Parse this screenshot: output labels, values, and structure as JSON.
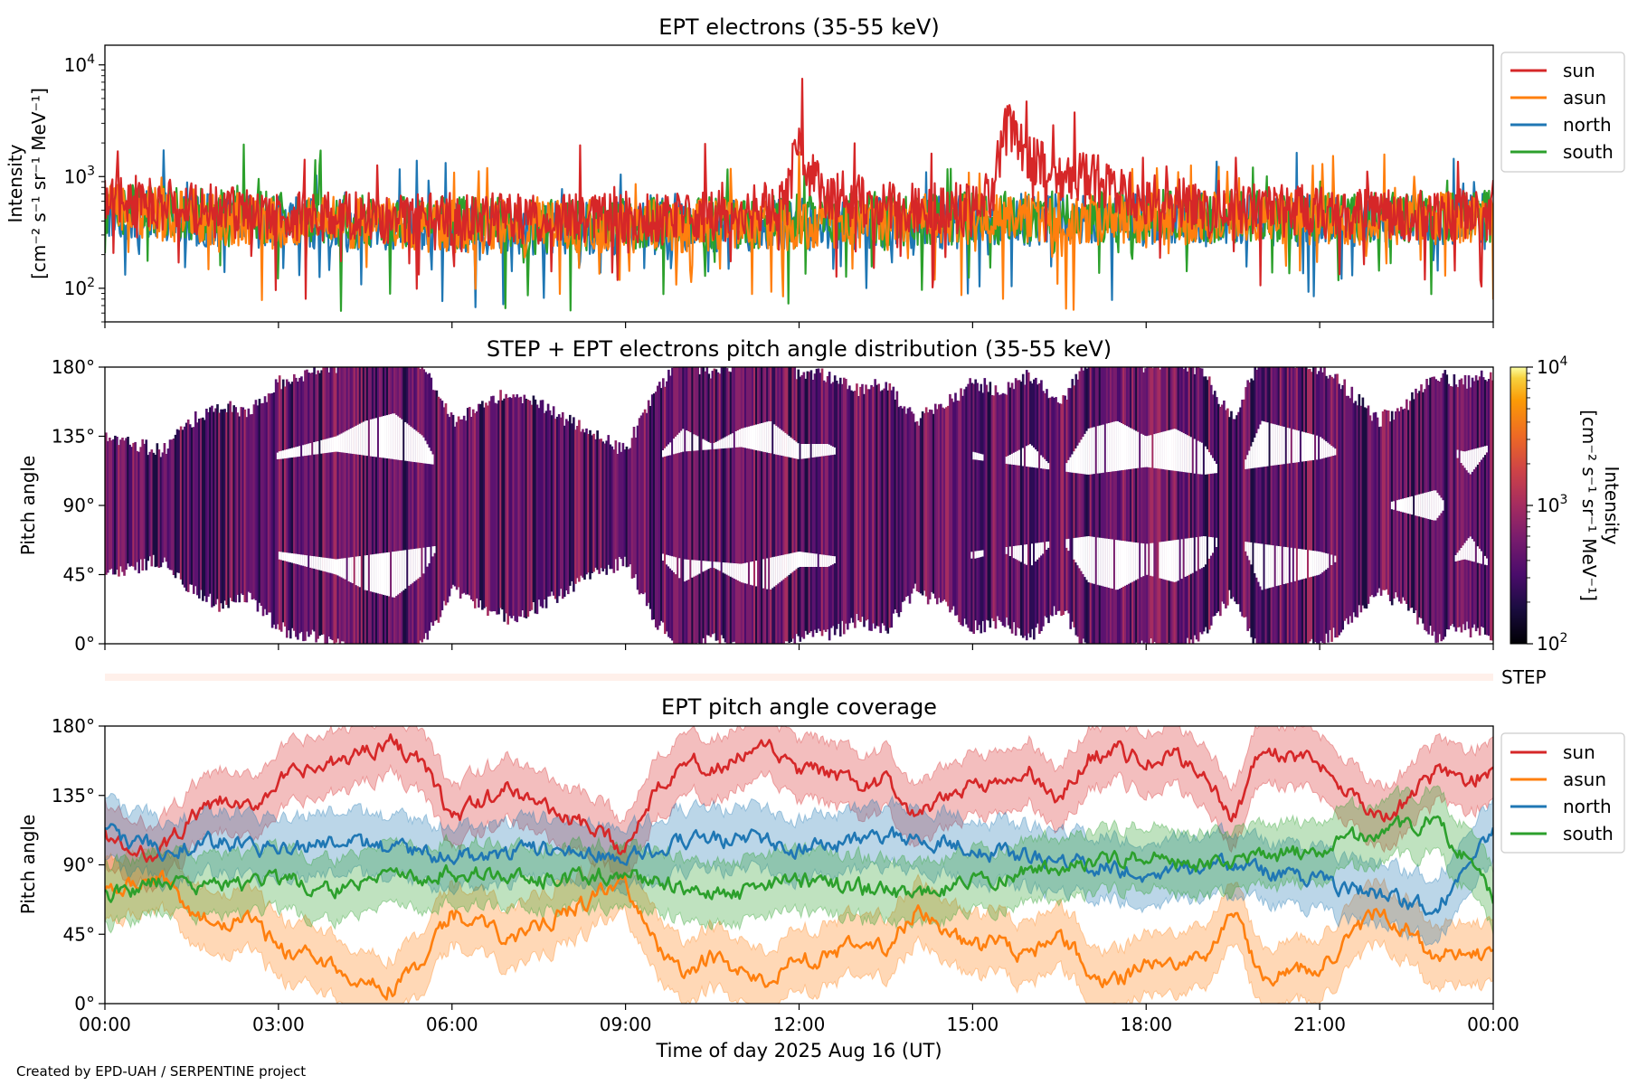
{
  "figure": {
    "credit": "Created by EPD-UAH / SERPENTINE project",
    "xlabel": "Time of day 2025 Aug 16 (UT)",
    "xticks": [
      "00:00",
      "03:00",
      "06:00",
      "09:00",
      "12:00",
      "15:00",
      "18:00",
      "21:00",
      "00:00"
    ],
    "xrange_hours": [
      0,
      24
    ]
  },
  "chart_data": [
    {
      "type": "line",
      "title": "EPT electrons (35-55 keV)",
      "ylabel": "Intensity",
      "ylabel_unit": "[cm⁻² s⁻¹ sr⁻¹ MeV⁻¹]",
      "yscale": "log",
      "ylim": [
        50,
        15000
      ],
      "yticks": [
        {
          "value": 100,
          "base": "10",
          "exp": "2"
        },
        {
          "value": 1000,
          "base": "10",
          "exp": "3"
        },
        {
          "value": 10000,
          "base": "10",
          "exp": "4"
        }
      ],
      "legend": "right-top",
      "series": [
        {
          "name": "sun",
          "color": "#d62728",
          "x": [
            0,
            1,
            2,
            3,
            4,
            5,
            6,
            7,
            8,
            9,
            10,
            11,
            11.8,
            12,
            12.2,
            12.5,
            13,
            14,
            15,
            15.4,
            15.6,
            16,
            16.5,
            17,
            17.5,
            18,
            19,
            20,
            21,
            22,
            23,
            24
          ],
          "y": [
            650,
            560,
            480,
            450,
            430,
            420,
            420,
            420,
            420,
            430,
            440,
            450,
            600,
            2000,
            1000,
            700,
            600,
            520,
            500,
            700,
            2800,
            1500,
            900,
            1000,
            700,
            600,
            550,
            500,
            480,
            460,
            450,
            450
          ]
        },
        {
          "name": "asun",
          "color": "#ff7f0e",
          "x": [
            0,
            2,
            4,
            6,
            8,
            10,
            12,
            14,
            16,
            18,
            20,
            22,
            24
          ],
          "y": [
            500,
            420,
            380,
            360,
            350,
            360,
            380,
            400,
            420,
            420,
            430,
            420,
            430
          ]
        },
        {
          "name": "north",
          "color": "#1f77b4",
          "x": [
            0,
            2,
            4,
            6,
            8,
            10,
            12,
            14,
            16,
            18,
            20,
            22,
            24
          ],
          "y": [
            480,
            400,
            370,
            350,
            340,
            350,
            370,
            390,
            400,
            410,
            410,
            400,
            410
          ]
        },
        {
          "name": "south",
          "color": "#2ca02c",
          "x": [
            0,
            2,
            4,
            6,
            8,
            10,
            12,
            14,
            16,
            18,
            20,
            22,
            24
          ],
          "y": [
            520,
            450,
            400,
            380,
            370,
            380,
            400,
            420,
            430,
            440,
            440,
            430,
            440
          ]
        }
      ]
    },
    {
      "type": "heatmap",
      "title": "STEP + EPT electrons pitch angle distribution (35-55 keV)",
      "ylabel": "Pitch angle",
      "ylim": [
        0,
        180
      ],
      "yticks": [
        "0°",
        "45°",
        "90°",
        "135°",
        "180°"
      ],
      "colorbar": {
        "label": "Intensity",
        "unit": "[cm⁻² s⁻¹ sr⁻¹ MeV⁻¹]",
        "scale": "log",
        "range": [
          100,
          10000
        ],
        "ticks": [
          {
            "value": 100,
            "base": "10",
            "exp": "2"
          },
          {
            "value": 1000,
            "base": "10",
            "exp": "3"
          },
          {
            "value": 10000,
            "base": "10",
            "exp": "4"
          }
        ],
        "colormap": "inferno"
      },
      "typical_intensity": 450
    },
    {
      "type": "bar",
      "label": "STEP",
      "color": "#fff0ea"
    },
    {
      "type": "area",
      "title": "EPT pitch angle coverage",
      "ylabel": "Pitch angle",
      "ylim": [
        0,
        180
      ],
      "yticks": [
        "0°",
        "45°",
        "90°",
        "135°",
        "180°"
      ],
      "band_halfwidth_deg": 20,
      "legend": "right-top",
      "series": [
        {
          "name": "sun",
          "color": "#d62728",
          "x": [
            0,
            0.5,
            1,
            1.5,
            2,
            2.5,
            3,
            3.5,
            4,
            4.5,
            5,
            5.5,
            6,
            6.5,
            7,
            7.5,
            8,
            8.5,
            9,
            9.5,
            10,
            10.5,
            11,
            11.5,
            12,
            12.5,
            13,
            13.5,
            14,
            14.5,
            15,
            15.5,
            16,
            16.5,
            17,
            17.5,
            18,
            18.5,
            19,
            19.5,
            20,
            20.5,
            21,
            21.5,
            22,
            22.5,
            23,
            23.5,
            24
          ],
          "y": [
            110,
            95,
            100,
            120,
            130,
            125,
            145,
            150,
            155,
            165,
            170,
            155,
            120,
            130,
            140,
            130,
            120,
            110,
            100,
            140,
            160,
            150,
            160,
            165,
            150,
            150,
            140,
            145,
            120,
            130,
            145,
            140,
            150,
            130,
            160,
            165,
            155,
            160,
            150,
            120,
            165,
            160,
            155,
            140,
            120,
            130,
            150,
            145,
            150
          ]
        },
        {
          "name": "asun",
          "color": "#ff7f0e",
          "x": [
            0,
            0.5,
            1,
            1.5,
            2,
            2.5,
            3,
            3.5,
            4,
            4.5,
            5,
            5.5,
            6,
            6.5,
            7,
            7.5,
            8,
            8.5,
            9,
            9.5,
            10,
            10.5,
            11,
            11.5,
            12,
            12.5,
            13,
            13.5,
            14,
            14.5,
            15,
            15.5,
            16,
            16.5,
            17,
            17.5,
            18,
            18.5,
            19,
            19.5,
            20,
            20.5,
            21,
            21.5,
            22,
            22.5,
            23,
            23.5,
            24
          ],
          "y": [
            70,
            80,
            80,
            60,
            50,
            55,
            35,
            30,
            25,
            15,
            10,
            25,
            60,
            50,
            40,
            50,
            60,
            70,
            80,
            40,
            20,
            30,
            20,
            15,
            30,
            30,
            40,
            35,
            60,
            50,
            35,
            40,
            30,
            50,
            20,
            15,
            25,
            20,
            30,
            60,
            15,
            20,
            25,
            40,
            60,
            50,
            30,
            35,
            30
          ]
        },
        {
          "name": "north",
          "color": "#1f77b4",
          "x": [
            0,
            1,
            2,
            3,
            4,
            5,
            6,
            7,
            8,
            9,
            10,
            11,
            12,
            13,
            14,
            15,
            16,
            17,
            18,
            19,
            20,
            21,
            22,
            23,
            24
          ],
          "y": [
            110,
            100,
            105,
            100,
            105,
            100,
            95,
            98,
            100,
            95,
            105,
            108,
            100,
            105,
            110,
            100,
            95,
            90,
            85,
            90,
            85,
            80,
            70,
            60,
            110
          ]
        },
        {
          "name": "south",
          "color": "#2ca02c",
          "x": [
            0,
            1,
            2,
            3,
            4,
            5,
            6,
            7,
            8,
            9,
            10,
            11,
            12,
            13,
            14,
            15,
            16,
            17,
            18,
            19,
            20,
            21,
            22,
            23,
            24
          ],
          "y": [
            70,
            80,
            75,
            80,
            75,
            80,
            85,
            82,
            80,
            85,
            75,
            72,
            80,
            75,
            70,
            80,
            85,
            90,
            95,
            90,
            95,
            100,
            110,
            120,
            70
          ]
        }
      ]
    }
  ]
}
